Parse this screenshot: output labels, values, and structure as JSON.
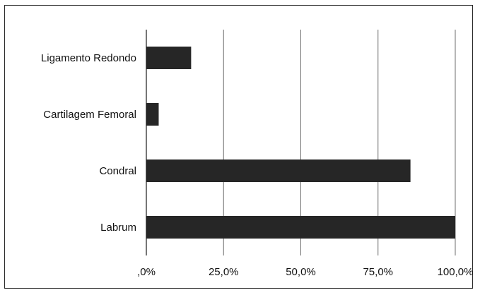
{
  "chart_data": {
    "type": "bar",
    "orientation": "horizontal",
    "title": "",
    "xlabel": "",
    "ylabel": "",
    "categories": [
      "Ligamento Redondo",
      "Cartilagem Femoral",
      "Condral",
      "Labrum"
    ],
    "values": [
      14.5,
      4.0,
      85.5,
      100.0
    ],
    "xlim": [
      0,
      100
    ],
    "ticks": [
      0,
      25,
      50,
      75,
      100
    ],
    "tick_labels": [
      ",0%",
      "25,0%",
      "50,0%",
      "75,0%",
      "100,0%"
    ],
    "grid": "vertical",
    "legend": "none",
    "colors": {
      "bar": "#262626",
      "grid": "#6f6f6f",
      "axis": "#1a1a1a",
      "text": "#111111"
    }
  }
}
